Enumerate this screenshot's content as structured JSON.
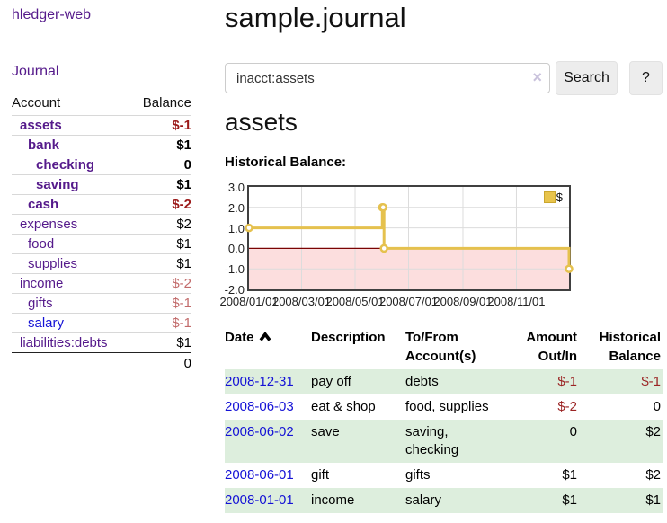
{
  "app": {
    "title": "hledger-web",
    "nav_journal": "Journal"
  },
  "colors": {
    "link_purple": "#551a8b",
    "link_blue": "#1512d6",
    "negative_strong": "#9b1a1a",
    "negative_soft": "#c26b6b",
    "row_stripe_green": "#ddeedd",
    "chart_line": "#e5c14e",
    "chart_negative_fill": "#fcdede",
    "chart_zero_line": "#7a0303"
  },
  "sidebar": {
    "headers": {
      "account": "Account",
      "balance": "Balance"
    },
    "accounts": [
      {
        "name": "assets",
        "depth": 1,
        "bold": true,
        "color": "purple",
        "balance": "$-1",
        "bclass": "neg-strong"
      },
      {
        "name": "bank",
        "depth": 2,
        "bold": true,
        "color": "purple",
        "balance": "$1",
        "bclass": ""
      },
      {
        "name": "checking",
        "depth": 3,
        "bold": true,
        "color": "purple",
        "balance": "0",
        "bclass": ""
      },
      {
        "name": "saving",
        "depth": 3,
        "bold": true,
        "color": "purple",
        "balance": "$1",
        "bclass": ""
      },
      {
        "name": "cash",
        "depth": 2,
        "bold": true,
        "color": "purple",
        "balance": "$-2",
        "bclass": "neg-strong"
      },
      {
        "name": "expenses",
        "depth": 1,
        "bold": false,
        "color": "purple",
        "balance": "$2",
        "bclass": ""
      },
      {
        "name": "food",
        "depth": 2,
        "bold": false,
        "color": "purple",
        "balance": "$1",
        "bclass": ""
      },
      {
        "name": "supplies",
        "depth": 2,
        "bold": false,
        "color": "purple",
        "balance": "$1",
        "bclass": ""
      },
      {
        "name": "income",
        "depth": 1,
        "bold": false,
        "color": "purple",
        "balance": "$-2",
        "bclass": "neg-soft"
      },
      {
        "name": "gifts",
        "depth": 2,
        "bold": false,
        "color": "purple",
        "balance": "$-1",
        "bclass": "neg-soft"
      },
      {
        "name": "salary",
        "depth": 2,
        "bold": false,
        "color": "blue",
        "balance": "$-1",
        "bclass": "neg-soft"
      },
      {
        "name": "liabilities:debts",
        "depth": 1,
        "bold": false,
        "color": "purple",
        "balance": "$1",
        "bclass": ""
      }
    ],
    "total": "0"
  },
  "main": {
    "title": "sample.journal",
    "search": {
      "value": "inacct:assets",
      "clear_icon": "×",
      "button": "Search",
      "help_button": "?"
    },
    "account_heading": "assets",
    "chart_label": "Historical Balance:"
  },
  "chart_data": {
    "type": "line",
    "title": "Historical Balance",
    "step": true,
    "x_range": [
      "2008-01-01",
      "2008-12-31"
    ],
    "ylim": [
      -2,
      3
    ],
    "y_ticks": [
      "3.0",
      "2.0",
      "1.0",
      "0.0",
      "-1.0",
      "-2.0"
    ],
    "x_ticks": [
      "2008/01/01",
      "2008/03/01",
      "2008/05/01",
      "2008/07/01",
      "2008/09/01",
      "2008/11/01"
    ],
    "legend": {
      "label": "$",
      "position": "top-right"
    },
    "series": [
      {
        "name": "$",
        "points": [
          {
            "date": "2008-01-01",
            "value": 1
          },
          {
            "date": "2008-06-01",
            "value": 2
          },
          {
            "date": "2008-06-02",
            "value": 2
          },
          {
            "date": "2008-06-03",
            "value": 0
          },
          {
            "date": "2008-12-31",
            "value": -1
          }
        ]
      }
    ],
    "grid": true,
    "negative_region_shaded": true
  },
  "register": {
    "headers": [
      "Date",
      "Description",
      "To/From Account(s)",
      "Amount Out/In",
      "Historical Balance"
    ],
    "rows": [
      {
        "date": "2008-12-31",
        "description": "pay off",
        "tofrom": "debts",
        "amount": "$-1",
        "amount_class": "neg",
        "balance": "$-1",
        "balance_class": "neg"
      },
      {
        "date": "2008-06-03",
        "description": "eat & shop",
        "tofrom": "food, supplies",
        "amount": "$-2",
        "amount_class": "neg",
        "balance": "0",
        "balance_class": ""
      },
      {
        "date": "2008-06-02",
        "description": "save",
        "tofrom": "saving,\nchecking",
        "amount": "0",
        "amount_class": "",
        "balance": "$2",
        "balance_class": ""
      },
      {
        "date": "2008-06-01",
        "description": "gift",
        "tofrom": "gifts",
        "amount": "$1",
        "amount_class": "",
        "balance": "$2",
        "balance_class": ""
      },
      {
        "date": "2008-01-01",
        "description": "income",
        "tofrom": "salary",
        "amount": "$1",
        "amount_class": "",
        "balance": "$1",
        "balance_class": ""
      }
    ]
  }
}
